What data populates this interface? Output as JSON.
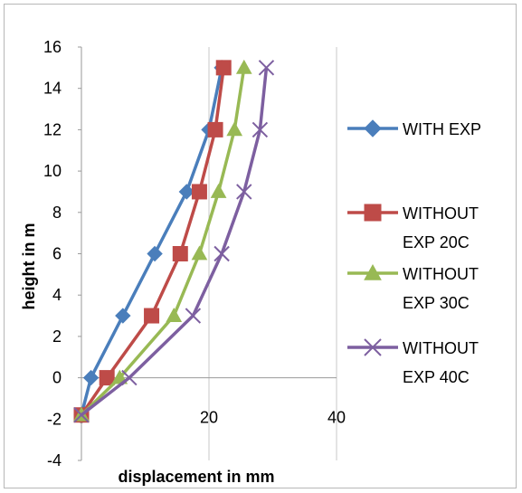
{
  "chart_data": {
    "type": "line",
    "title": "",
    "xlabel": "displacement in mm",
    "ylabel": "height in m",
    "xlim": [
      0,
      40
    ],
    "ylim": [
      -4,
      16
    ],
    "xticks": [
      "0",
      "20",
      "40"
    ],
    "yticks": [
      "-4",
      "-2",
      "0",
      "2",
      "4",
      "6",
      "8",
      "10",
      "12",
      "14",
      "16"
    ],
    "grid": "vertical",
    "legend_position": "right",
    "series": [
      {
        "name": "WITH EXP",
        "color": "#4a7ebb",
        "marker": "diamond",
        "points": [
          [
            0,
            -1.8
          ],
          [
            1.5,
            0
          ],
          [
            6.5,
            3
          ],
          [
            11.5,
            6
          ],
          [
            16.5,
            9
          ],
          [
            20,
            12
          ],
          [
            22,
            15
          ]
        ]
      },
      {
        "name": "WITHOUT EXP 20C",
        "color": "#be4b48",
        "marker": "square",
        "points": [
          [
            0,
            -1.8
          ],
          [
            4,
            0
          ],
          [
            11,
            3
          ],
          [
            15.5,
            6
          ],
          [
            18.5,
            9
          ],
          [
            21,
            12
          ],
          [
            22.3,
            15
          ]
        ]
      },
      {
        "name": "WITHOUT EXP 30C",
        "color": "#98b954",
        "marker": "triangle",
        "points": [
          [
            0,
            -1.8
          ],
          [
            6,
            0
          ],
          [
            14.5,
            3
          ],
          [
            18.5,
            6
          ],
          [
            21.5,
            9
          ],
          [
            24,
            12
          ],
          [
            25.5,
            15
          ]
        ]
      },
      {
        "name": "WITHOUT EXP 40C",
        "color": "#7d5fa0",
        "marker": "x",
        "points": [
          [
            0,
            -1.8
          ],
          [
            7.5,
            0
          ],
          [
            17.5,
            3
          ],
          [
            22,
            6
          ],
          [
            25.5,
            9
          ],
          [
            28,
            12
          ],
          [
            29,
            15
          ]
        ]
      }
    ],
    "legend": [
      {
        "lines": [
          "WITH EXP"
        ]
      },
      {
        "lines": [
          "WITHOUT",
          "EXP 20C"
        ]
      },
      {
        "lines": [
          "WITHOUT",
          "EXP 30C"
        ]
      },
      {
        "lines": [
          "WITHOUT",
          "EXP 40C"
        ]
      }
    ]
  }
}
